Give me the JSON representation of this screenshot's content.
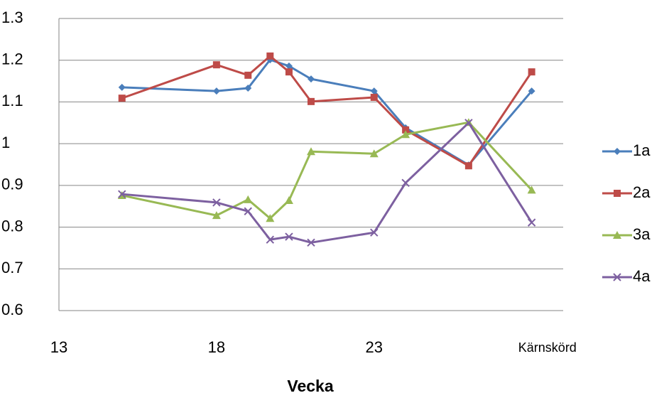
{
  "chart_data": {
    "type": "line",
    "x_label": "Vecka",
    "x": [
      15,
      18,
      19,
      19.7,
      20.3,
      21,
      23,
      24,
      26,
      28
    ],
    "series": [
      {
        "name": "1a",
        "color": "#4a7ebb",
        "marker": "diamond",
        "values": [
          1.135,
          1.126,
          1.133,
          1.201,
          1.186,
          1.155,
          1.126,
          1.038,
          0.949,
          1.126
        ]
      },
      {
        "name": "2a",
        "color": "#be4b48",
        "marker": "square",
        "values": [
          1.109,
          1.189,
          1.164,
          1.21,
          1.172,
          1.101,
          1.111,
          1.033,
          0.947,
          1.172
        ]
      },
      {
        "name": "3a",
        "color": "#98b954",
        "marker": "triangle",
        "values": [
          0.876,
          0.828,
          0.866,
          0.821,
          0.864,
          0.981,
          0.976,
          1.022,
          1.051,
          0.889
        ]
      },
      {
        "name": "4a",
        "color": "#7d60a0",
        "marker": "x",
        "values": [
          0.879,
          0.859,
          0.838,
          0.77,
          0.777,
          0.763,
          0.787,
          0.906,
          1.05,
          0.811
        ]
      }
    ],
    "xlim": [
      13,
      29
    ],
    "xticks": [
      13,
      18,
      23,
      {
        "value": 28.5,
        "label": "Kärnskörd"
      }
    ],
    "ylim": [
      0.6,
      1.3
    ],
    "yticks": [
      0.6,
      0.7,
      0.8,
      0.9,
      1,
      1.1,
      1.2,
      1.3
    ],
    "grid": true,
    "legend": "right"
  }
}
